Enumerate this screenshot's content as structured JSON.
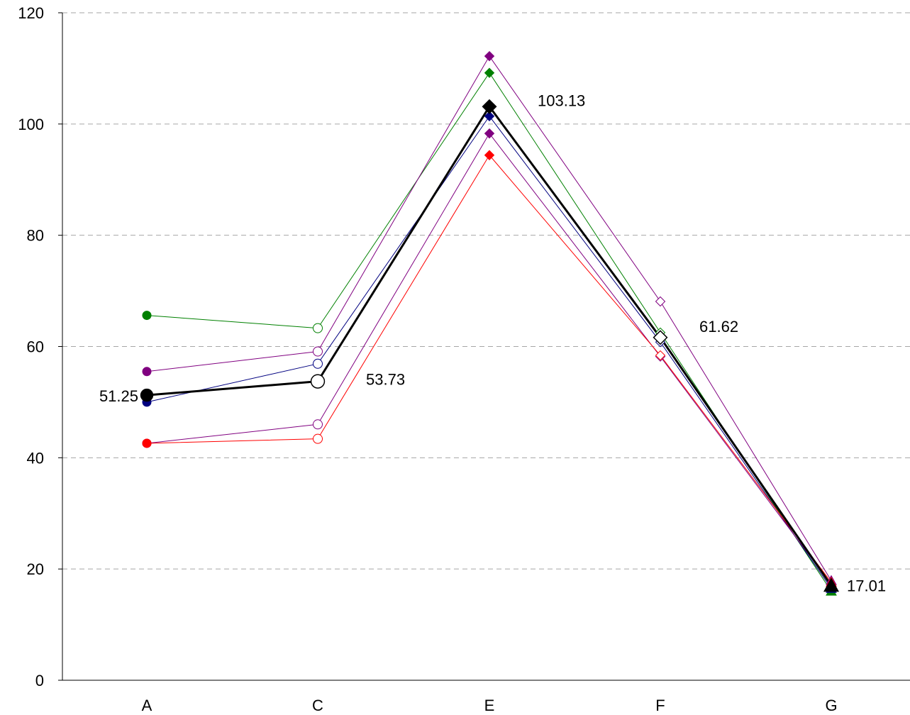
{
  "chart_data": {
    "type": "line",
    "categories": [
      "A",
      "C",
      "E",
      "F",
      "G"
    ],
    "ylim": [
      0,
      120
    ],
    "yticks": [
      0,
      20,
      40,
      60,
      80,
      100,
      120
    ],
    "grid": true,
    "legend": "none",
    "series": [
      {
        "color": "#008000",
        "values": [
          65.6,
          63.3,
          109.2,
          62.5,
          16.0
        ],
        "markers": [
          "circle-filled",
          "circle-open",
          "diamond-filled",
          "diamond-open",
          "triangle-filled"
        ]
      },
      {
        "color": "#800080",
        "values": [
          55.5,
          59.1,
          112.2,
          68.1,
          17.9
        ],
        "markers": [
          "circle-filled",
          "circle-open",
          "diamond-filled",
          "diamond-open",
          "triangle-filled"
        ]
      },
      {
        "color": "#000080",
        "values": [
          50.0,
          56.9,
          101.4,
          60.8,
          16.5
        ],
        "markers": [
          "circle-filled",
          "circle-open",
          "diamond-filled",
          "diamond-open",
          "triangle-filled"
        ]
      },
      {
        "color": "#800080",
        "values": [
          42.6,
          46.0,
          98.3,
          58.2,
          17.2
        ],
        "markers": [
          "circle-filled",
          "circle-open",
          "diamond-filled",
          "diamond-open",
          "triangle-filled"
        ]
      },
      {
        "color": "#ff0000",
        "values": [
          42.6,
          43.4,
          94.4,
          58.4,
          17.6
        ],
        "markers": [
          "circle-filled",
          "circle-open",
          "diamond-filled",
          "diamond-open",
          "triangle-filled"
        ]
      },
      {
        "color": "#000000",
        "bold": true,
        "values": [
          51.25,
          53.73,
          103.13,
          61.62,
          17.01
        ],
        "markers": [
          "circle-filled",
          "circle-open",
          "diamond-filled",
          "diamond-open",
          "triangle-filled"
        ]
      }
    ],
    "data_labels": [
      "51.25",
      "53.73",
      "103.13",
      "61.62",
      "17.01"
    ]
  }
}
